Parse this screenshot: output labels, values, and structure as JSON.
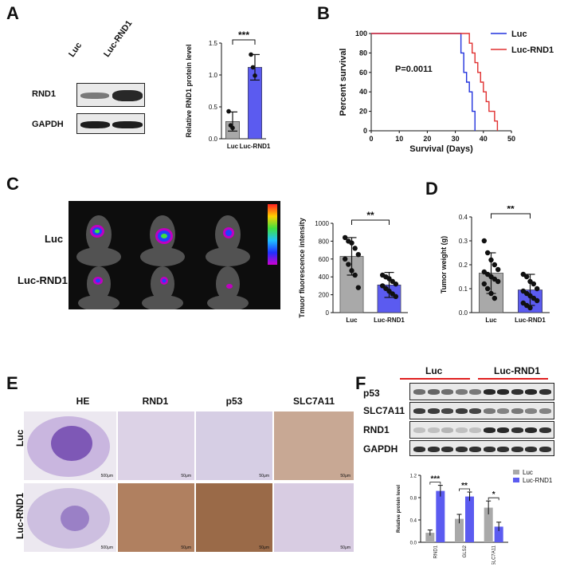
{
  "panels": {
    "A": {
      "label": "A",
      "blot_lanes": [
        "Luc",
        "Luc-RND1"
      ],
      "blot_rows": [
        "RND1",
        "GAPDH"
      ]
    },
    "B": {
      "label": "B",
      "pvalue": "P=0.0011"
    },
    "C": {
      "label": "C",
      "row_labels": [
        "Luc",
        "Luc-RND1"
      ]
    },
    "D": {
      "label": "D"
    },
    "E": {
      "label": "E",
      "col_labels": [
        "HE",
        "RND1",
        "p53",
        "SLC7A11"
      ],
      "row_labels": [
        "Luc",
        "Luc-RND1"
      ],
      "scale_he": "500μm",
      "scale_ihc": "50μm"
    },
    "F": {
      "label": "F",
      "group_labels": [
        "Luc",
        "Luc-RND1"
      ],
      "blot_rows": [
        "p53",
        "SLC7A11",
        "RND1",
        "GAPDH"
      ]
    }
  },
  "chart_data": [
    {
      "id": "A-bar",
      "type": "bar",
      "categories": [
        "Luc",
        "Luc-RND1"
      ],
      "values": [
        0.27,
        1.12
      ],
      "points": [
        [
          0.43,
          0.21,
          0.17
        ],
        [
          1.32,
          1.12,
          0.99
        ]
      ],
      "errors": [
        0.15,
        0.2
      ],
      "ylabel": "Relative RND1 protein level",
      "ylim": [
        0,
        1.5
      ],
      "yticks": [
        "0.0",
        "0.5",
        "1.0",
        "1.5"
      ],
      "significance": "***",
      "colors": [
        "#a9a9a9",
        "#5b5bf0"
      ]
    },
    {
      "id": "B-survival",
      "type": "line",
      "xlabel": "Survival (Days)",
      "ylabel": "Percent survival",
      "xlim": [
        0,
        50
      ],
      "ylim": [
        0,
        100
      ],
      "xticks": [
        "0",
        "10",
        "20",
        "30",
        "40",
        "50"
      ],
      "yticks": [
        "0",
        "20",
        "40",
        "60",
        "80",
        "100"
      ],
      "series": [
        {
          "name": "Luc",
          "color": "#2233dd",
          "x": [
            0,
            32,
            32,
            33,
            33,
            34,
            34,
            35,
            35,
            36,
            36,
            37,
            37
          ],
          "y": [
            100,
            100,
            80,
            80,
            60,
            60,
            50,
            50,
            40,
            40,
            20,
            20,
            0
          ]
        },
        {
          "name": "Luc-RND1",
          "color": "#e03030",
          "x": [
            0,
            35,
            35,
            36,
            36,
            37,
            37,
            38,
            38,
            39,
            39,
            40,
            40,
            41,
            41,
            42,
            42,
            44,
            44,
            45,
            45
          ],
          "y": [
            100,
            100,
            90,
            90,
            80,
            80,
            70,
            70,
            60,
            60,
            50,
            50,
            40,
            40,
            30,
            30,
            20,
            20,
            10,
            10,
            0
          ]
        }
      ]
    },
    {
      "id": "C-bar",
      "type": "bar",
      "categories": [
        "Luc",
        "Luc-RND1"
      ],
      "values": [
        630,
        310
      ],
      "errors": [
        210,
        140
      ],
      "points": [
        [
          840,
          800,
          780,
          720,
          650,
          600,
          540,
          470,
          420,
          280
        ],
        [
          420,
          400,
          380,
          350,
          320,
          300,
          270,
          240,
          210,
          180
        ]
      ],
      "ylabel": "Tmuor fluorescence intensity",
      "ylim": [
        0,
        1000
      ],
      "yticks": [
        "0",
        "200",
        "400",
        "600",
        "800",
        "1000"
      ],
      "significance": "**",
      "colors": [
        "#a9a9a9",
        "#5b5bf0"
      ]
    },
    {
      "id": "D-bar",
      "type": "bar",
      "categories": [
        "Luc",
        "Luc-RND1"
      ],
      "values": [
        0.165,
        0.095
      ],
      "errors": [
        0.085,
        0.065
      ],
      "points": [
        [
          0.3,
          0.25,
          0.22,
          0.2,
          0.18,
          0.17,
          0.16,
          0.15,
          0.14,
          0.13,
          0.12,
          0.1,
          0.08,
          0.06
        ],
        [
          0.16,
          0.15,
          0.13,
          0.12,
          0.1,
          0.09,
          0.08,
          0.07,
          0.06,
          0.05,
          0.04,
          0.03,
          0.02
        ]
      ],
      "ylabel": "Tumor weight (g)",
      "ylim": [
        0,
        0.4
      ],
      "yticks": [
        "0.0",
        "0.1",
        "0.2",
        "0.3",
        "0.4"
      ],
      "significance": "**",
      "colors": [
        "#a9a9a9",
        "#5b5bf0"
      ]
    },
    {
      "id": "F-bar",
      "type": "bar",
      "categories": [
        "RND1",
        "GLS2",
        "SLC7A11"
      ],
      "ylabel": "Relative protein level",
      "ylim": [
        0,
        1.2
      ],
      "yticks": [
        "0.0",
        "0.4",
        "0.8",
        "1.2"
      ],
      "significance": [
        "***",
        "**",
        "*"
      ],
      "series": [
        {
          "name": "Luc",
          "color": "#a9a9a9",
          "values": [
            0.17,
            0.42,
            0.62
          ],
          "errors": [
            0.05,
            0.08,
            0.12
          ]
        },
        {
          "name": "Luc-RND1",
          "color": "#5b5bf0",
          "values": [
            0.92,
            0.82,
            0.28
          ],
          "errors": [
            0.1,
            0.08,
            0.08
          ]
        }
      ]
    }
  ]
}
